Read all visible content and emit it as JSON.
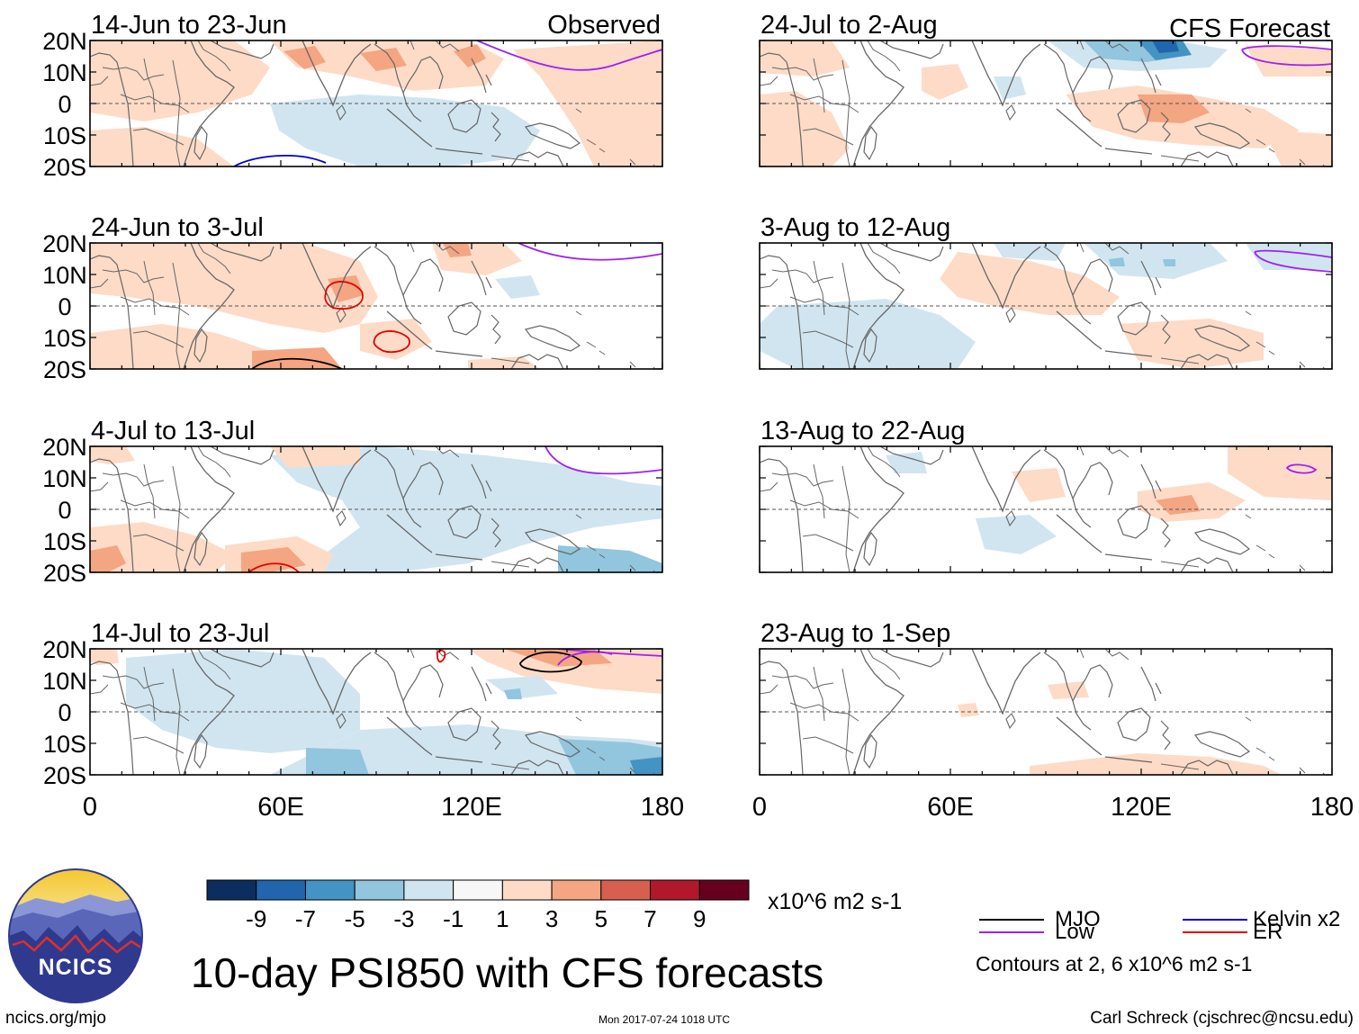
{
  "sections": {
    "observed_label": "Observed",
    "forecast_label": "CFS Forecast"
  },
  "panels": [
    {
      "title": "14-Jun to 23-Jun",
      "column": "left"
    },
    {
      "title": "24-Jun to 3-Jul",
      "column": "left"
    },
    {
      "title": "4-Jul to 13-Jul",
      "column": "left"
    },
    {
      "title": "14-Jul to 23-Jul",
      "column": "left"
    },
    {
      "title": "24-Jul to 2-Aug",
      "column": "right"
    },
    {
      "title": "3-Aug to 12-Aug",
      "column": "right"
    },
    {
      "title": "13-Aug to 22-Aug",
      "column": "right"
    },
    {
      "title": "23-Aug to 1-Sep",
      "column": "right"
    }
  ],
  "axes": {
    "lat_labels": [
      "20N",
      "10N",
      "0",
      "10S",
      "20S"
    ],
    "lon_labels": [
      "0",
      "60E",
      "120E",
      "180"
    ]
  },
  "colorbar": {
    "colors": [
      "#0b2e5e",
      "#2166ac",
      "#4393c3",
      "#92c5de",
      "#d1e5f0",
      "#f7f7f7",
      "#fddbc7",
      "#f4a582",
      "#d6604d",
      "#b2182b",
      "#67001f"
    ],
    "labels": [
      "-9",
      "-7",
      "-5",
      "-3",
      "-1",
      "1",
      "3",
      "5",
      "7",
      "9"
    ],
    "units": "x10^6 m2 s-1"
  },
  "title": "10-day PSI850 with CFS forecasts",
  "legend": {
    "items": [
      {
        "label": "MJO",
        "color": "#000000"
      },
      {
        "label": "Kelvin x2",
        "color": "#0000cc"
      },
      {
        "label": "Low",
        "color": "#a020f0"
      },
      {
        "label": "ER",
        "color": "#e00000"
      }
    ],
    "contours_note": "Contours at 2, 6 x10^6 m2 s-1"
  },
  "logo": {
    "text": "NCICS"
  },
  "footer": {
    "left": "ncics.org/mjo",
    "center": "Mon 2017-07-24 1018 UTC",
    "right": "Carl Schreck (cjschrec@ncsu.edu)"
  },
  "colors": {
    "pos_light": "#fddbc7",
    "pos_mid": "#f4a582",
    "pos_strong": "#d6604d",
    "neg_light": "#d1e5f0",
    "neg_mid": "#92c5de",
    "neg_strong": "#4393c3",
    "neg_deep": "#2166ac",
    "land_outline": "#666666",
    "mjo": "#000000",
    "kelvin": "#0000cc",
    "low": "#a020f0",
    "er": "#e00000"
  }
}
